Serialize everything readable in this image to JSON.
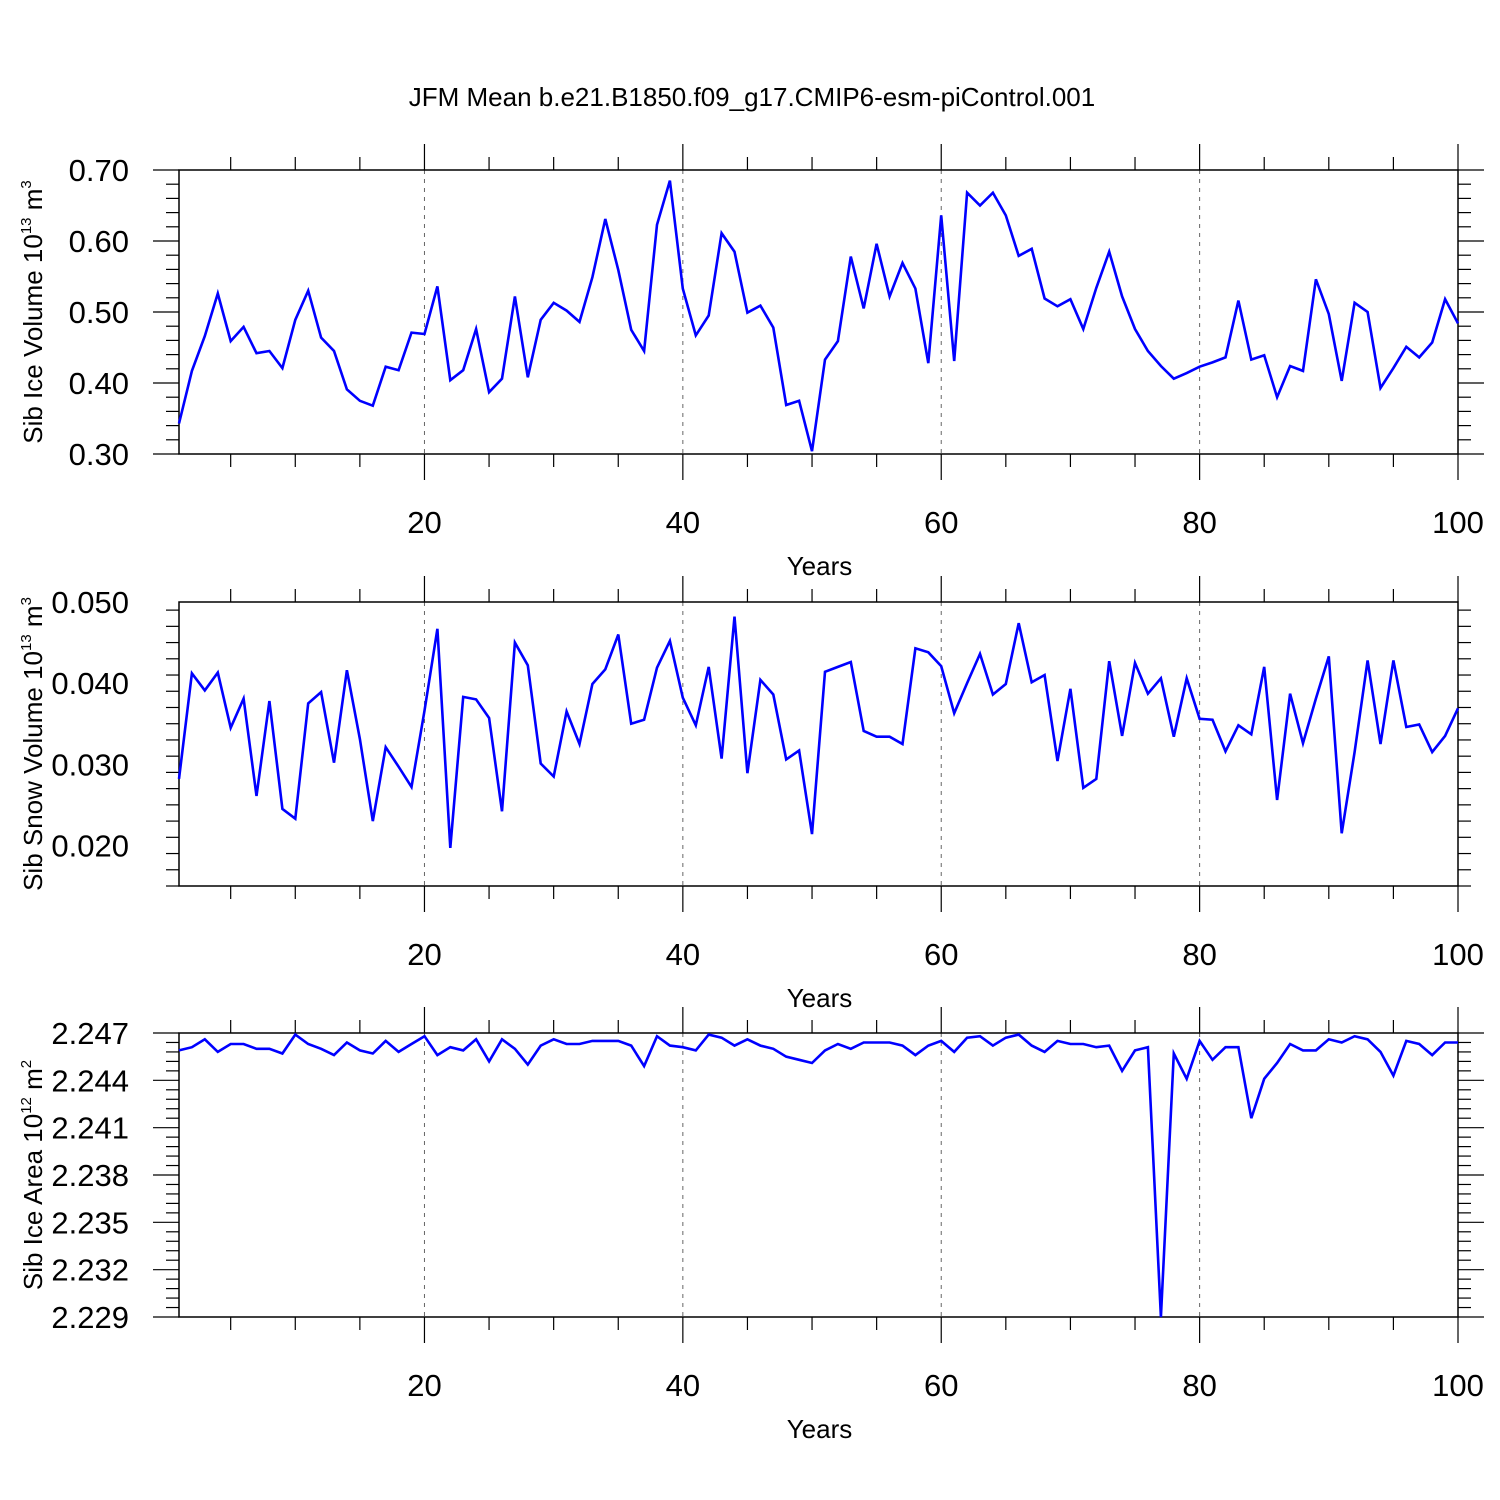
{
  "title": "JFM Mean b.e21.B1850.f09_g17.CMIP6-esm-piControl.001",
  "chart_data": [
    {
      "type": "line",
      "title": "JFM Mean b.e21.B1850.f09_g17.CMIP6-esm-piControl.001",
      "xlabel": "Years",
      "ylabel": {
        "main": "Sib Ice Volume 10",
        "exp": "13",
        "unit": " m",
        "unit_exp": "3"
      },
      "xlim": [
        1,
        100
      ],
      "ylim": [
        0.3,
        0.7
      ],
      "x_ticks": [
        "20",
        "40",
        "60",
        "80",
        "100"
      ],
      "y_ticks": [
        "0.30",
        "0.40",
        "0.50",
        "0.60",
        "0.70"
      ],
      "color": "#0000ff",
      "series": [
        {
          "name": "Sib Ice Volume",
          "values": [
            0.343,
            0.417,
            0.466,
            0.526,
            0.459,
            0.479,
            0.442,
            0.445,
            0.421,
            0.489,
            0.53,
            0.464,
            0.445,
            0.391,
            0.375,
            0.368,
            0.423,
            0.418,
            0.471,
            0.469,
            0.536,
            0.404,
            0.418,
            0.476,
            0.387,
            0.406,
            0.522,
            0.408,
            0.489,
            0.513,
            0.502,
            0.486,
            0.549,
            0.631,
            0.559,
            0.475,
            0.445,
            0.623,
            0.685,
            0.533,
            0.467,
            0.495,
            0.611,
            0.585,
            0.499,
            0.509,
            0.478,
            0.369,
            0.375,
            0.304,
            0.433,
            0.459,
            0.578,
            0.505,
            0.596,
            0.522,
            0.569,
            0.533,
            0.428,
            0.636,
            0.431,
            0.668,
            0.65,
            0.668,
            0.636,
            0.579,
            0.589,
            0.519,
            0.508,
            0.518,
            0.476,
            0.534,
            0.585,
            0.522,
            0.476,
            0.445,
            0.424,
            0.406,
            0.414,
            0.423,
            0.429,
            0.436,
            0.516,
            0.433,
            0.439,
            0.38,
            0.424,
            0.417,
            0.546,
            0.497,
            0.403,
            0.513,
            0.5,
            0.393,
            0.421,
            0.451,
            0.436,
            0.457,
            0.518,
            0.484
          ]
        }
      ]
    },
    {
      "type": "line",
      "xlabel": "Years",
      "ylabel": {
        "main": "Sib Snow Volume 10",
        "exp": "13",
        "unit": " m",
        "unit_exp": "3"
      },
      "xlim": [
        1,
        100
      ],
      "ylim": [
        0.015,
        0.05
      ],
      "x_ticks": [
        "20",
        "40",
        "60",
        "80",
        "100"
      ],
      "y_ticks": [
        "0.020",
        "0.030",
        "0.040",
        "0.050"
      ],
      "y_tick_values": [
        0.02,
        0.03,
        0.04,
        0.05
      ],
      "color": "#0000ff",
      "series": [
        {
          "name": "Sib Snow Volume",
          "values": [
            0.0282,
            0.0412,
            0.0391,
            0.0413,
            0.0345,
            0.0381,
            0.0261,
            0.0378,
            0.0245,
            0.0233,
            0.0375,
            0.0389,
            0.0302,
            0.0416,
            0.0331,
            0.023,
            0.0321,
            0.0297,
            0.0272,
            0.0366,
            0.0467,
            0.0197,
            0.0383,
            0.038,
            0.0357,
            0.0242,
            0.045,
            0.0422,
            0.0301,
            0.0285,
            0.0365,
            0.0325,
            0.0399,
            0.0417,
            0.046,
            0.035,
            0.0355,
            0.0419,
            0.0452,
            0.0382,
            0.0348,
            0.042,
            0.0307,
            0.0482,
            0.0289,
            0.0404,
            0.0386,
            0.0306,
            0.0317,
            0.0214,
            0.0414,
            0.042,
            0.0426,
            0.0341,
            0.0334,
            0.0334,
            0.0325,
            0.0443,
            0.0438,
            0.0421,
            0.0363,
            0.04,
            0.0436,
            0.0386,
            0.0399,
            0.0474,
            0.0401,
            0.041,
            0.0304,
            0.0393,
            0.0271,
            0.0282,
            0.0427,
            0.0335,
            0.0425,
            0.0387,
            0.0406,
            0.0334,
            0.0406,
            0.0356,
            0.0355,
            0.0316,
            0.0348,
            0.0337,
            0.042,
            0.0256,
            0.0387,
            0.0326,
            0.0381,
            0.0433,
            0.0215,
            0.0315,
            0.0428,
            0.0325,
            0.0428,
            0.0346,
            0.0349,
            0.0315,
            0.0335,
            0.0369
          ]
        }
      ]
    },
    {
      "type": "line",
      "xlabel": "Years",
      "ylabel": {
        "main": "Sib Ice Area 10",
        "exp": "12",
        "unit": " m",
        "unit_exp": "2"
      },
      "xlim": [
        1,
        100
      ],
      "ylim": [
        2.229,
        2.247
      ],
      "x_ticks": [
        "20",
        "40",
        "60",
        "80",
        "100"
      ],
      "y_ticks": [
        "2.229",
        "2.232",
        "2.235",
        "2.238",
        "2.241",
        "2.244",
        "2.247"
      ],
      "color": "#0000ff",
      "series": [
        {
          "name": "Sib Ice Area",
          "values": [
            2.2459,
            2.2461,
            2.2466,
            2.2458,
            2.2463,
            2.2463,
            2.246,
            2.246,
            2.2457,
            2.2469,
            2.2463,
            2.246,
            2.2456,
            2.2464,
            2.2459,
            2.2457,
            2.2465,
            2.2458,
            2.2463,
            2.2468,
            2.2456,
            2.2461,
            2.2459,
            2.2466,
            2.2452,
            2.2466,
            2.246,
            2.245,
            2.2462,
            2.2466,
            2.2463,
            2.2463,
            2.2465,
            2.2465,
            2.2465,
            2.2462,
            2.2449,
            2.2468,
            2.2462,
            2.2461,
            2.2459,
            2.2469,
            2.2467,
            2.2462,
            2.2466,
            2.2462,
            2.246,
            2.2455,
            2.2453,
            2.2451,
            2.2459,
            2.2463,
            2.246,
            2.2464,
            2.2464,
            2.2464,
            2.2462,
            2.2456,
            2.2462,
            2.2465,
            2.2458,
            2.2467,
            2.2468,
            2.2462,
            2.2467,
            2.2469,
            2.2462,
            2.2458,
            2.2465,
            2.2463,
            2.2463,
            2.2461,
            2.2462,
            2.2446,
            2.2459,
            2.2461,
            2.229,
            2.2457,
            2.2441,
            2.2465,
            2.2453,
            2.2461,
            2.2461,
            2.2416,
            2.2441,
            2.2451,
            2.2463,
            2.2459,
            2.2459,
            2.2466,
            2.2464,
            2.2468,
            2.2466,
            2.2458,
            2.2443,
            2.2465,
            2.2463,
            2.2456,
            2.2464,
            2.2464
          ]
        }
      ]
    }
  ]
}
